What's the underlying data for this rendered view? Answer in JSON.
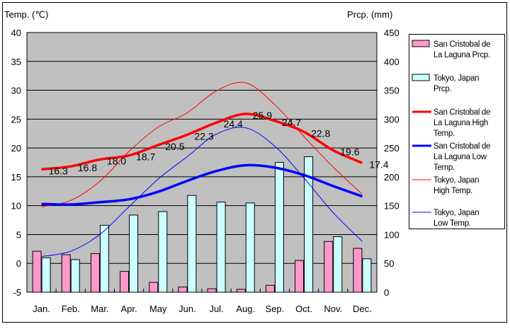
{
  "chart_data": {
    "type": "bar+line",
    "left_axis": {
      "label": "Temp. (℃)",
      "range": [
        -5,
        40
      ],
      "ticks": [
        -5,
        0,
        5,
        10,
        15,
        20,
        25,
        30,
        35,
        40
      ]
    },
    "right_axis": {
      "label": "Prcp. (mm)",
      "range": [
        0,
        450
      ],
      "ticks": [
        0,
        50,
        100,
        150,
        200,
        250,
        300,
        350,
        400,
        450
      ]
    },
    "grid": true,
    "legend_position": "right",
    "categories": [
      "Jan.",
      "Feb.",
      "Mar.",
      "Apr.",
      "May",
      "Jun.",
      "Jul.",
      "Aug.",
      "Sep.",
      "Oct.",
      "Nov.",
      "Dec."
    ],
    "bar_series": [
      {
        "name": "San Cristobal de La Laguna Prcp.",
        "color": "#ff99cc",
        "values": [
          71,
          65,
          67,
          36,
          17,
          9,
          6,
          5,
          12,
          55,
          88,
          76
        ]
      },
      {
        "name": "Tokyo, Japan Prcp.",
        "color": "#ccffff",
        "values": [
          59.7,
          56.5,
          116.0,
          133.7,
          139.7,
          167.8,
          156.2,
          154.7,
          224.9,
          234.8,
          96.3,
          57.9
        ]
      }
    ],
    "line_series": [
      {
        "name": "San Cristobal de La Laguna High Temp.",
        "color": "#ff0000",
        "width": "thick",
        "values": [
          16.3,
          16.8,
          18.0,
          18.7,
          20.5,
          22.3,
          24.4,
          25.9,
          24.7,
          22.8,
          19.6,
          17.4
        ],
        "labels": [
          "16.3",
          "16.8",
          "18.0",
          "18.7",
          "20.5",
          "22.3",
          "24.4",
          "25.9",
          "24.7",
          "22.8",
          "19.6",
          "17.4"
        ]
      },
      {
        "name": "San Cristobal de La Laguna Low Temp.",
        "color": "#0000ff",
        "width": "thick",
        "values": [
          10.3,
          10.2,
          10.6,
          11.1,
          12.4,
          14.3,
          16.0,
          17.0,
          16.6,
          15.3,
          13.4,
          11.6
        ]
      },
      {
        "name": "Tokyo, Japan High Temp.",
        "color": "#ff0000",
        "width": "thin",
        "values": [
          9.8,
          10.9,
          14.2,
          19.4,
          23.6,
          26.1,
          29.9,
          31.3,
          27.5,
          22.0,
          16.7,
          12.0
        ]
      },
      {
        "name": "Tokyo, Japan Low Temp.",
        "color": "#0000ff",
        "width": "thin",
        "values": [
          1.2,
          2.1,
          5.0,
          9.8,
          14.6,
          18.5,
          22.4,
          23.5,
          20.3,
          14.8,
          8.8,
          3.8
        ]
      }
    ],
    "legend": [
      [
        "San Cristobal de",
        "La Laguna Prcp."
      ],
      [
        "Tokyo, Japan",
        "Prcp."
      ],
      [
        "San Cristobal de",
        "La Laguna High",
        "Temp."
      ],
      [
        "San Cristobal de",
        "La Laguna Low",
        "Temp."
      ],
      [
        "Tokyo, Japan",
        "High Temp."
      ],
      [
        "Tokyo, Japan",
        "Low Temp."
      ]
    ]
  }
}
